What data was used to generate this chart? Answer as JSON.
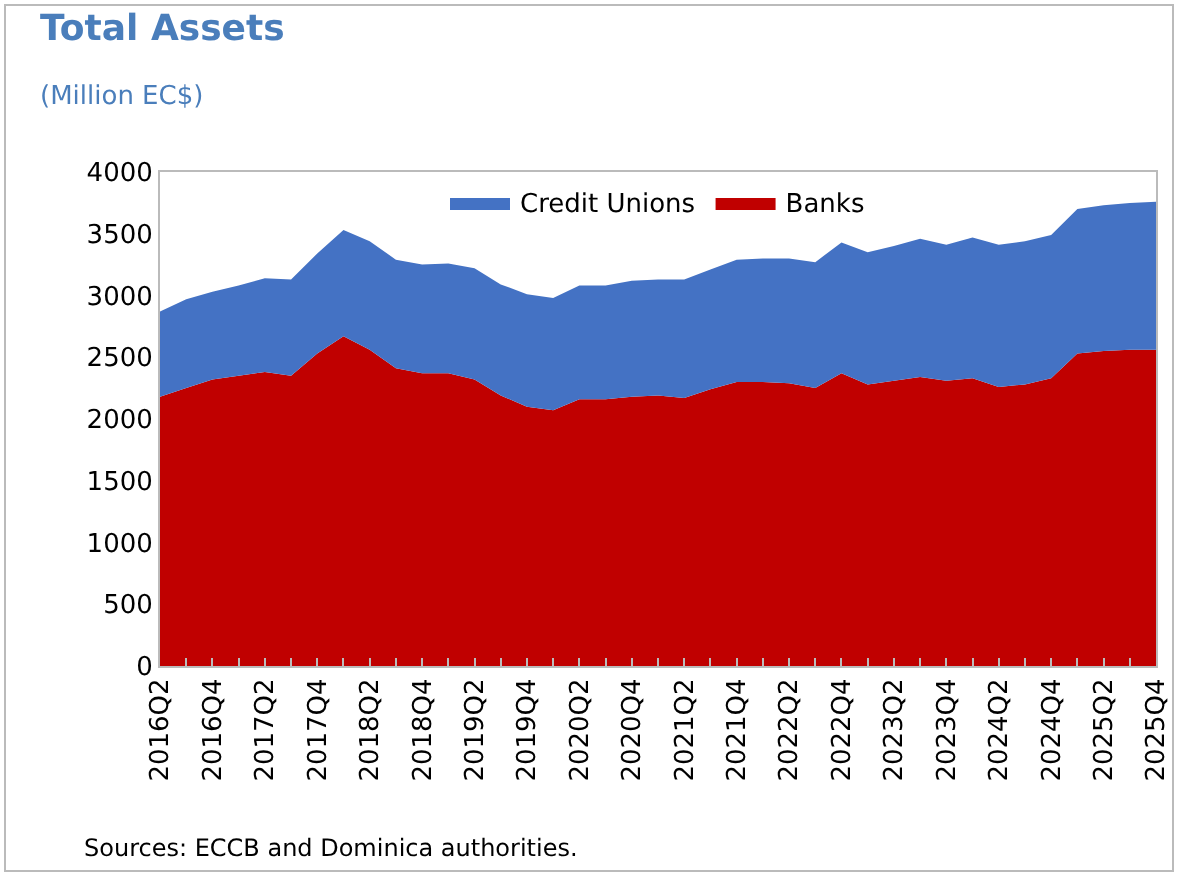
{
  "chart_data": {
    "type": "area",
    "stacked": true,
    "title": "Total Assets",
    "subtitle": "(Million EC$)",
    "categories": [
      "2016Q2",
      null,
      "2016Q4",
      null,
      "2017Q2",
      null,
      "2017Q4",
      null,
      "2018Q2",
      null,
      "2018Q4",
      null,
      "2019Q2",
      null,
      "2019Q4",
      null,
      "2020Q2",
      null,
      "2020Q4",
      null,
      "2021Q2",
      null,
      "2021Q4",
      null,
      "2022Q2",
      null,
      "2022Q4",
      null,
      "2023Q2",
      null,
      "2023Q4",
      null,
      "2024Q2",
      null,
      "2024Q4",
      null,
      "2025Q2",
      null,
      "2025Q4"
    ],
    "series": [
      {
        "name": "Banks",
        "color": "#c00000",
        "values": [
          2180,
          2250,
          2320,
          2350,
          2380,
          2350,
          2530,
          2670,
          2560,
          2410,
          2370,
          2370,
          2320,
          2190,
          2100,
          2070,
          2160,
          2160,
          2180,
          2190,
          2170,
          2240,
          2300,
          2300,
          2290,
          2250,
          2370,
          2280,
          2310,
          2340,
          2310,
          2330,
          2260,
          2280,
          2330,
          2530,
          2550,
          2560,
          2560
        ]
      },
      {
        "name": "Credit Unions",
        "color": "#4472c4",
        "values": [
          690,
          720,
          710,
          730,
          760,
          780,
          810,
          860,
          880,
          880,
          880,
          890,
          900,
          900,
          910,
          910,
          920,
          920,
          940,
          940,
          960,
          970,
          990,
          1000,
          1010,
          1020,
          1060,
          1070,
          1090,
          1120,
          1100,
          1140,
          1150,
          1160,
          1160,
          1170,
          1180,
          1190,
          1200
        ]
      }
    ],
    "ylim": [
      0,
      4000
    ],
    "yticks": [
      0,
      500,
      1000,
      1500,
      2000,
      2500,
      3000,
      3500,
      4000
    ],
    "grid": false,
    "legend": "top",
    "annotations": [
      "Sources: ECCB and Dominica authorities."
    ]
  }
}
